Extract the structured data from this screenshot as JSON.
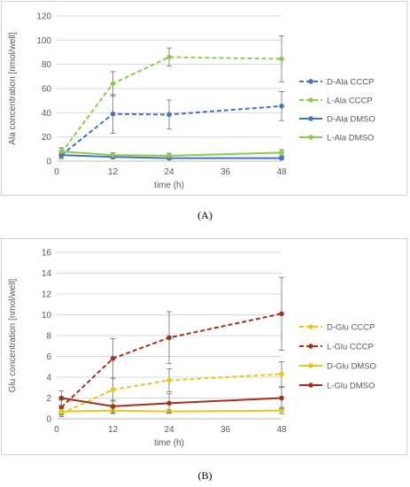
{
  "chart_data": [
    {
      "panel": "(A)",
      "type": "line",
      "ylabel": "Ala concentration [nmol/well]",
      "xlabel": "time (h)",
      "ylim": [
        0,
        120
      ],
      "yticks": [
        0,
        20,
        40,
        60,
        80,
        100,
        120
      ],
      "xlim": [
        0,
        48
      ],
      "xticks": [
        0,
        12,
        24,
        36,
        48
      ],
      "grid": true,
      "legend_position": "right",
      "series": [
        {
          "name": "D-Ala CCCP",
          "color": "#4472C4",
          "dashed": true,
          "x": [
            1,
            12,
            24,
            48
          ],
          "y": [
            5,
            39,
            38.5,
            45.5
          ],
          "err": [
            3,
            16,
            12,
            12
          ]
        },
        {
          "name": "L-Ala CCCP",
          "color": "#8CCB50",
          "dashed": true,
          "x": [
            1,
            12,
            24,
            48
          ],
          "y": [
            7,
            64,
            86,
            84.5
          ],
          "err": [
            4,
            10,
            7.5,
            19
          ]
        },
        {
          "name": "D-Ala DMSO",
          "color": "#4472C4",
          "dashed": false,
          "x": [
            1,
            12,
            24,
            48
          ],
          "y": [
            5,
            3.5,
            2.5,
            2.5
          ],
          "err": [
            2,
            1.5,
            1,
            1
          ]
        },
        {
          "name": "L-Ala DMSO",
          "color": "#8CCB50",
          "dashed": false,
          "x": [
            1,
            12,
            24,
            48
          ],
          "y": [
            8,
            5,
            4.5,
            7
          ],
          "err": [
            3,
            2,
            2,
            2.5
          ]
        }
      ]
    },
    {
      "panel": "(B)",
      "type": "line",
      "ylabel": "Glu concentration [nmol/well]",
      "xlabel": "time (h)",
      "ylim": [
        0,
        16
      ],
      "yticks": [
        0,
        2,
        4,
        6,
        8,
        10,
        12,
        14,
        16
      ],
      "xlim": [
        0,
        48
      ],
      "xticks": [
        0,
        12,
        24,
        36,
        48
      ],
      "grid": true,
      "legend_position": "right",
      "series": [
        {
          "name": "D-Glu CCCP",
          "color": "#E3C81E",
          "dashed": true,
          "x": [
            1,
            12,
            24,
            48
          ],
          "y": [
            0.5,
            2.8,
            3.7,
            4.3
          ],
          "err": [
            0.3,
            1.1,
            1.1,
            1.2
          ]
        },
        {
          "name": "L-Glu CCCP",
          "color": "#A0321E",
          "dashed": true,
          "x": [
            1,
            12,
            24,
            48
          ],
          "y": [
            1.1,
            5.8,
            7.8,
            10.1
          ],
          "err": [
            0.7,
            1.9,
            2.5,
            3.5
          ]
        },
        {
          "name": "D-Glu DMSO",
          "color": "#E3C81E",
          "dashed": false,
          "x": [
            1,
            12,
            24,
            48
          ],
          "y": [
            0.7,
            0.8,
            0.7,
            0.8
          ],
          "err": [
            0.3,
            0.3,
            0.2,
            0.3
          ]
        },
        {
          "name": "L-Glu DMSO",
          "color": "#A0321E",
          "dashed": false,
          "x": [
            1,
            12,
            24,
            48
          ],
          "y": [
            2,
            1.2,
            1.5,
            2
          ],
          "err": [
            0.7,
            0.6,
            0.9,
            1
          ]
        }
      ]
    }
  ]
}
